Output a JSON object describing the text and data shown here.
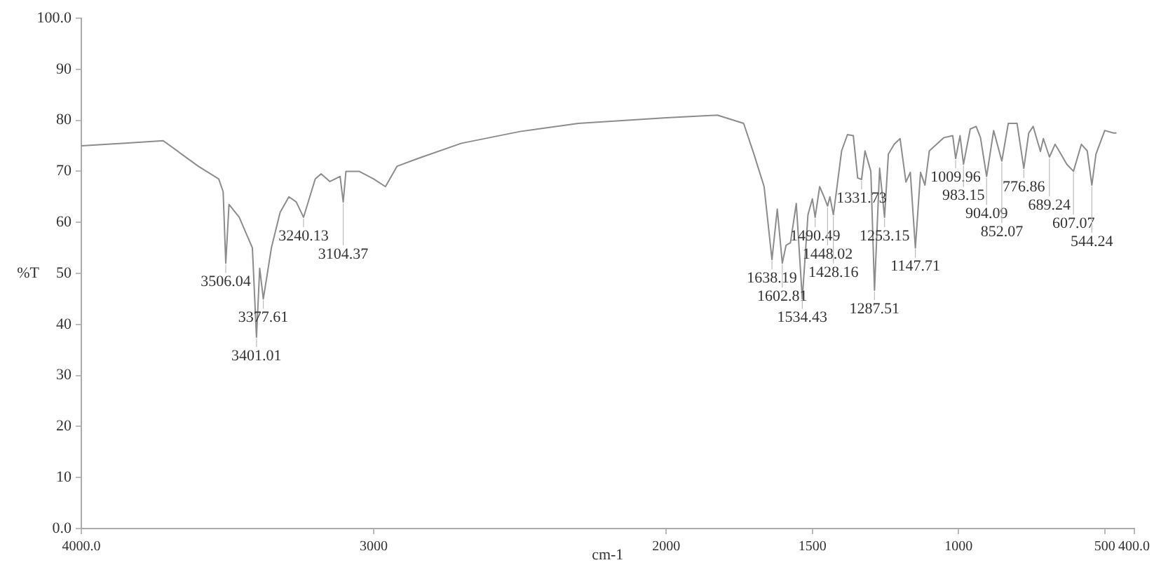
{
  "chart_data": {
    "type": "line",
    "xlabel": "cm-1",
    "ylabel": "%T",
    "x": [
      4000,
      3850,
      3720,
      3600,
      3530,
      3515,
      3506.04,
      3495,
      3460,
      3430,
      3415,
      3401.01,
      3390,
      3377.61,
      3350,
      3320,
      3290,
      3265,
      3240.13,
      3200,
      3180,
      3150,
      3115,
      3104.37,
      3095,
      3050,
      3000,
      2960,
      2920,
      2850,
      2700,
      2500,
      2300,
      2000,
      1825,
      1735,
      1700,
      1665,
      1638.19,
      1620,
      1602.81,
      1590,
      1575,
      1555,
      1534.43,
      1515,
      1500,
      1490.49,
      1475,
      1460,
      1448.02,
      1440,
      1428.16,
      1415,
      1400,
      1380,
      1360,
      1345,
      1331.73,
      1320,
      1300,
      1287.51,
      1270,
      1253.15,
      1240,
      1220,
      1200,
      1180,
      1165,
      1147.71,
      1130,
      1115,
      1100,
      1050,
      1020,
      1009.96,
      995,
      983.15,
      960,
      940,
      925,
      904.09,
      880,
      852.07,
      830,
      800,
      776.86,
      760,
      745,
      720,
      710,
      689.24,
      670,
      650,
      630,
      607.07,
      580,
      560,
      544.24,
      530,
      500,
      470,
      460
    ],
    "values": [
      75,
      75.5,
      76,
      71,
      68.5,
      66,
      52,
      63.5,
      61,
      57,
      55,
      37.5,
      51,
      45,
      55,
      62,
      65,
      64,
      61,
      68.5,
      69.5,
      68,
      69,
      64,
      70,
      70,
      68.5,
      67,
      71,
      72.5,
      75.5,
      77.8,
      79.4,
      80.5,
      81,
      79.4,
      73.4,
      67,
      52.7,
      62.6,
      52,
      55.5,
      56,
      63.7,
      45,
      61.5,
      64.6,
      61,
      67,
      65,
      63.2,
      65,
      61.5,
      67.3,
      74,
      77.2,
      77,
      68.7,
      68.4,
      74,
      70,
      46.7,
      70.6,
      61,
      73.4,
      75.3,
      76.4,
      67.9,
      69.8,
      55,
      69.8,
      67.3,
      74,
      76.6,
      77,
      72.5,
      77,
      71.4,
      78.3,
      78.8,
      76.6,
      69,
      78,
      72,
      79.4,
      79.4,
      70.6,
      77.5,
      78.8,
      73.9,
      76.4,
      72.8,
      75.3,
      73.4,
      71.4,
      70,
      75.3,
      74,
      67.3,
      73.4,
      78,
      77.5,
      77.5
    ],
    "color": "#8c8c8c",
    "xlim": [
      4000,
      400
    ],
    "xticks": [
      {
        "value": 4000,
        "label": "4000.0"
      },
      3000,
      2000,
      1500,
      1000,
      500,
      {
        "value": 400,
        "label": "400.0"
      }
    ],
    "ylim": [
      0,
      100
    ],
    "yticks": [
      {
        "value": 0,
        "label": "0.0"
      },
      10,
      20,
      30,
      40,
      50,
      60,
      70,
      80,
      90,
      {
        "value": 100,
        "label": "100.0"
      }
    ],
    "marker": "none",
    "annotations": [
      {
        "text": "3506.04",
        "x": 3506.04,
        "y": 52
      },
      {
        "text": "3401.01",
        "x": 3401.01,
        "y": 37.5
      },
      {
        "text": "3377.61",
        "x": 3377.61,
        "y": 45
      },
      {
        "text": "3240.13",
        "x": 3240.13,
        "y": 61
      },
      {
        "text": "3104.37",
        "x": 3104.37,
        "y": 64
      },
      {
        "text": "1638.19",
        "x": 1638.19,
        "y": 52.7
      },
      {
        "text": "1602.81",
        "x": 1602.81,
        "y": 52
      },
      {
        "text": "1534.43",
        "x": 1534.43,
        "y": 45
      },
      {
        "text": "1490.49",
        "x": 1490.49,
        "y": 61
      },
      {
        "text": "1448.02",
        "x": 1448.02,
        "y": 63.2
      },
      {
        "text": "1428.16",
        "x": 1428.16,
        "y": 61.5
      },
      {
        "text": "1331.73",
        "x": 1331.73,
        "y": 68.4
      },
      {
        "text": "1287.51",
        "x": 1287.51,
        "y": 46.7
      },
      {
        "text": "1253.15",
        "x": 1253.15,
        "y": 61
      },
      {
        "text": "1147.71",
        "x": 1147.71,
        "y": 55
      },
      {
        "text": "1009.96",
        "x": 1009.96,
        "y": 72.5
      },
      {
        "text": "983.15",
        "x": 983.15,
        "y": 71.4
      },
      {
        "text": "904.09",
        "x": 904.09,
        "y": 69
      },
      {
        "text": "852.07",
        "x": 852.07,
        "y": 72
      },
      {
        "text": "776.86",
        "x": 776.86,
        "y": 70.6
      },
      {
        "text": "689.24",
        "x": 689.24,
        "y": 72.8
      },
      {
        "text": "607.07",
        "x": 607.07,
        "y": 70
      },
      {
        "text": "544.24",
        "x": 544.24,
        "y": 67.3
      }
    ]
  }
}
